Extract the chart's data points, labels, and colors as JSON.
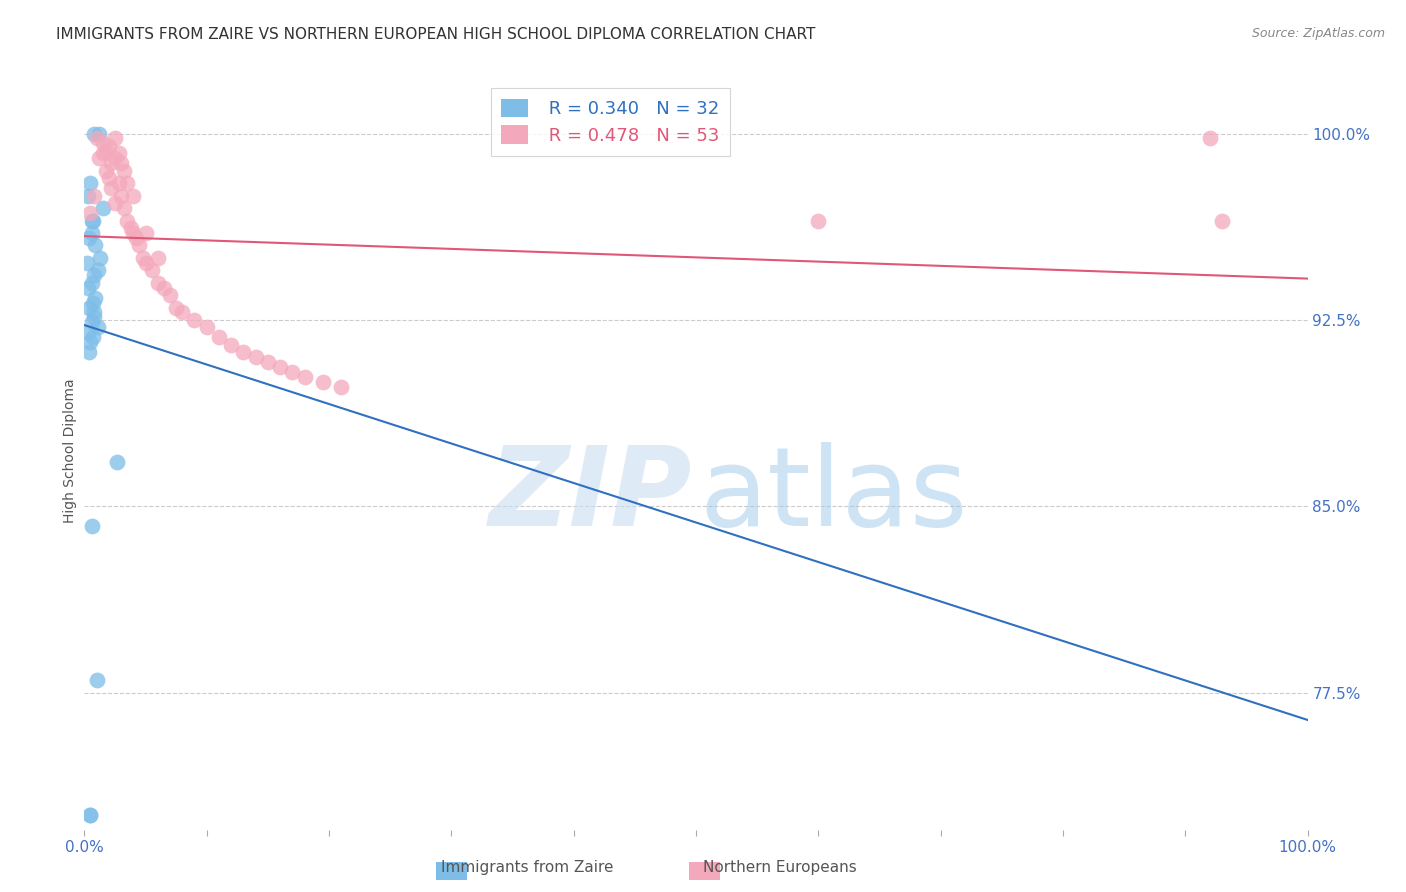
{
  "title": "IMMIGRANTS FROM ZAIRE VS NORTHERN EUROPEAN HIGH SCHOOL DIPLOMA CORRELATION CHART",
  "source": "Source: ZipAtlas.com",
  "ylabel": "High School Diploma",
  "xlim": [
    0.0,
    1.0
  ],
  "ylim": [
    0.72,
    1.025
  ],
  "yticks": [
    0.775,
    0.85,
    0.925,
    1.0
  ],
  "ytick_labels": [
    "77.5%",
    "85.0%",
    "92.5%",
    "100.0%"
  ],
  "xtick_labels": [
    "0.0%",
    "",
    "",
    "",
    "",
    "",
    "",
    "",
    "",
    "",
    "100.0%"
  ],
  "blue_R": 0.34,
  "blue_N": 32,
  "pink_R": 0.478,
  "pink_N": 53,
  "blue_color": "#7dbde8",
  "pink_color": "#f4a8bb",
  "blue_line_color": "#3070c0",
  "pink_line_color": "#e05878",
  "legend_label_blue": "Immigrants from Zaire",
  "legend_label_pink": "Northern Europeans",
  "blue_x": [
    0.002,
    0.003,
    0.003,
    0.003,
    0.004,
    0.004,
    0.004,
    0.005,
    0.005,
    0.005,
    0.006,
    0.006,
    0.006,
    0.006,
    0.007,
    0.007,
    0.007,
    0.008,
    0.008,
    0.008,
    0.009,
    0.009,
    0.01,
    0.011,
    0.011,
    0.012,
    0.013,
    0.015,
    0.027,
    0.005,
    0.006,
    0.008
  ],
  "blue_y": [
    0.948,
    0.938,
    0.92,
    0.975,
    0.958,
    0.912,
    0.93,
    0.98,
    0.916,
    0.726,
    0.965,
    0.94,
    0.924,
    0.842,
    0.965,
    0.932,
    0.918,
    1.0,
    0.943,
    0.926,
    0.955,
    0.934,
    0.78,
    0.945,
    0.922,
    1.0,
    0.95,
    0.97,
    0.868,
    0.726,
    0.96,
    0.928
  ],
  "pink_x": [
    0.005,
    0.008,
    0.01,
    0.012,
    0.015,
    0.015,
    0.018,
    0.018,
    0.02,
    0.02,
    0.022,
    0.022,
    0.025,
    0.025,
    0.025,
    0.028,
    0.028,
    0.03,
    0.03,
    0.032,
    0.032,
    0.035,
    0.035,
    0.038,
    0.04,
    0.04,
    0.042,
    0.045,
    0.048,
    0.05,
    0.05,
    0.055,
    0.06,
    0.06,
    0.065,
    0.07,
    0.075,
    0.08,
    0.09,
    0.1,
    0.11,
    0.12,
    0.13,
    0.14,
    0.15,
    0.16,
    0.17,
    0.18,
    0.195,
    0.21,
    0.6,
    0.92,
    0.93
  ],
  "pink_y": [
    0.968,
    0.975,
    0.998,
    0.99,
    0.992,
    0.996,
    0.985,
    0.993,
    0.982,
    0.995,
    0.978,
    0.988,
    0.972,
    0.99,
    0.998,
    0.98,
    0.992,
    0.975,
    0.988,
    0.97,
    0.985,
    0.965,
    0.98,
    0.962,
    0.96,
    0.975,
    0.958,
    0.955,
    0.95,
    0.948,
    0.96,
    0.945,
    0.94,
    0.95,
    0.938,
    0.935,
    0.93,
    0.928,
    0.925,
    0.922,
    0.918,
    0.915,
    0.912,
    0.91,
    0.908,
    0.906,
    0.904,
    0.902,
    0.9,
    0.898,
    0.965,
    0.998,
    0.965
  ]
}
